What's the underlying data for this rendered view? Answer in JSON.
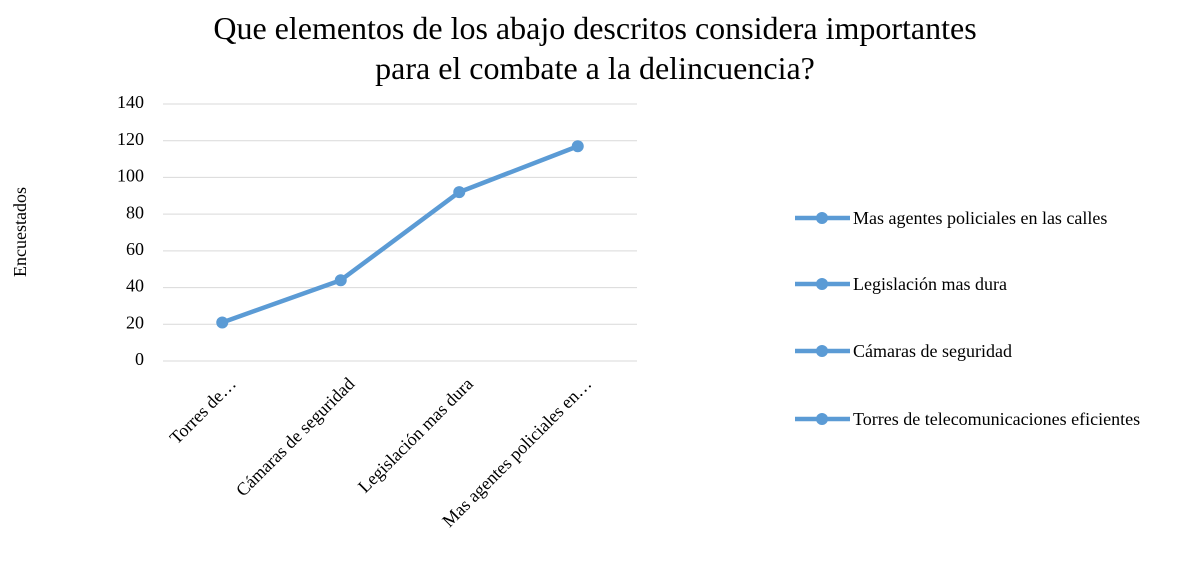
{
  "chart_data": {
    "type": "line",
    "title": "Que elementos de los abajo descritos considera importantes para el combate a la delincuencia?",
    "y_label": "Encuestados",
    "categories": [
      "Torres de…",
      "Cámaras de seguridad",
      "Legislación mas dura",
      "Mas agentes policiales en…"
    ],
    "values": [
      21,
      44,
      92,
      117
    ],
    "color": "#5b9bd5",
    "ylim": [
      0,
      140
    ],
    "yticks": [
      0,
      20,
      40,
      60,
      80,
      100,
      120,
      140
    ],
    "grid": true,
    "legend": [
      "Mas agentes policiales en las calles",
      "Legislación mas dura",
      "Cámaras de seguridad",
      "Torres de telecomunicaciones eficientes"
    ]
  }
}
